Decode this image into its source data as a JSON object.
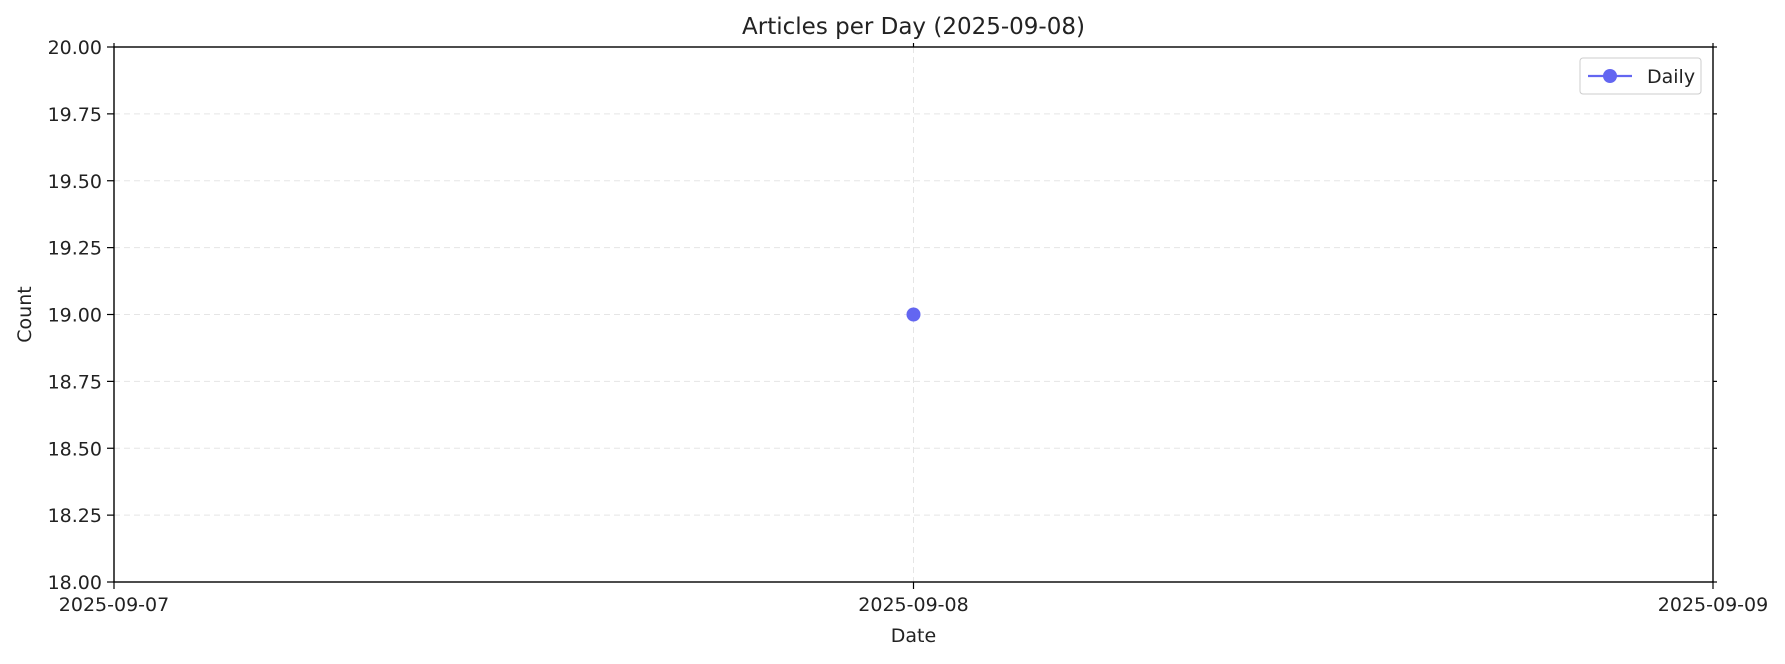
{
  "chart_data": {
    "type": "line",
    "title": "Articles per Day (2025-09-08)",
    "xlabel": "Date",
    "ylabel": "Count",
    "x_ticks": [
      "2025-09-07",
      "2025-09-08",
      "2025-09-09"
    ],
    "y_ticks": [
      "18.00",
      "18.25",
      "18.50",
      "18.75",
      "19.00",
      "19.25",
      "19.50",
      "19.75",
      "20.00"
    ],
    "xlim": [
      "2025-09-07",
      "2025-09-09"
    ],
    "ylim": [
      18,
      20
    ],
    "grid": true,
    "legend_position": "top-right",
    "series": [
      {
        "name": "Daily",
        "color": "#6366f1",
        "marker": "circle",
        "x": [
          "2025-09-08"
        ],
        "y": [
          19
        ]
      }
    ]
  }
}
